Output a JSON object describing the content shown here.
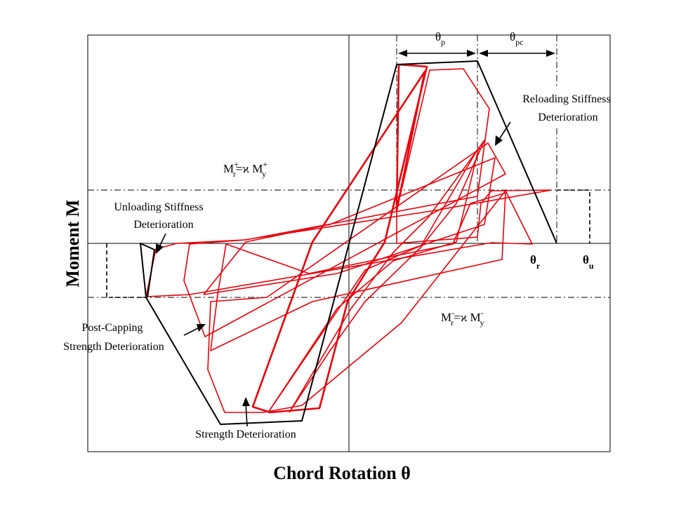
{
  "axes": {
    "x_title": "Chord Rotation  θ",
    "y_title": "Moment M"
  },
  "labels": {
    "theta_p": {
      "main": "θ",
      "sub": "p"
    },
    "theta_pc": {
      "main": "θ",
      "sub": "pc"
    },
    "theta_r": {
      "main": "θ",
      "sub": "r"
    },
    "theta_u": {
      "main": "θ",
      "sub": "u"
    },
    "mr_pos": {
      "a": "M",
      "a_sup": "+",
      "a_sub": "r",
      "eq": "=ϰ M",
      "b_sup": "+",
      "b_sub": "y"
    },
    "mr_neg": {
      "a": "M",
      "a_sup": "-",
      "a_sub": "r",
      "eq": "=ϰ M",
      "b_sup": "-",
      "b_sub": "y"
    }
  },
  "annotations": {
    "reloading": [
      "Reloading Stiffness",
      "Deterioration"
    ],
    "unloading": [
      "Unloading Stiffness",
      "Deterioration"
    ],
    "post_capping": [
      "Post-Capping",
      "Strength Deterioration"
    ],
    "strength": "Strength Deterioration"
  },
  "colors": {
    "backbone": "#000000",
    "hysteresis": "#e8000b",
    "background": "#ffffff"
  }
}
